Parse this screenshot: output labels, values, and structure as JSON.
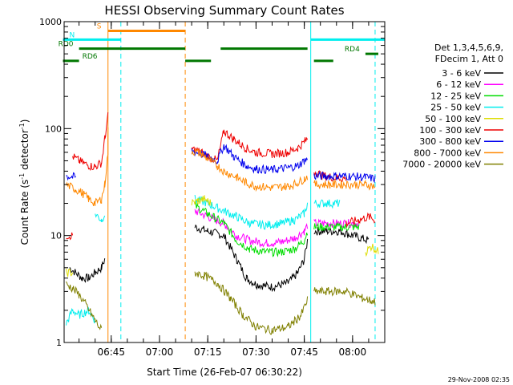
{
  "chart_data": {
    "type": "line",
    "title": "HESSI Observing Summary Count Rates",
    "xlabel": "Start Time (26-Feb-07 06:30:22)",
    "ylabel_main": "Count Rate (s",
    "ylabel_sup1": "-1",
    "ylabel_mid": " detector",
    "ylabel_sup2": "-1",
    "ylabel_end": ")",
    "y_scale": "log",
    "ylim": [
      1,
      1000
    ],
    "xlim": [
      "06:30:22",
      "08:10:00"
    ],
    "xticks": [
      {
        "t": "06:45",
        "label": "06:45"
      },
      {
        "t": "07:00",
        "label": "07:00"
      },
      {
        "t": "07:15",
        "label": "07:15"
      },
      {
        "t": "07:30",
        "label": "07:30"
      },
      {
        "t": "07:45",
        "label": "07:45"
      },
      {
        "t": "08:00",
        "label": "08:00"
      }
    ],
    "yticks": [
      {
        "v": 1,
        "label": "1"
      },
      {
        "v": 10,
        "label": "10"
      },
      {
        "v": 100,
        "label": "100"
      },
      {
        "v": 1000,
        "label": "1000"
      }
    ],
    "legend_header": [
      "Det 1,3,4,5,6,9,",
      "FDecim 1, Att 0"
    ],
    "series": [
      {
        "name": "3 - 6 keV",
        "color": "#000000",
        "segments": [
          [
            [
              "06:32",
              5
            ],
            [
              "06:36",
              4
            ],
            [
              "06:38",
              4
            ],
            [
              "06:40",
              4.5
            ],
            [
              "06:42",
              5
            ],
            [
              "06:43",
              6
            ]
          ],
          [
            [
              "07:11",
              12
            ],
            [
              "07:15",
              11
            ],
            [
              "07:20",
              10
            ],
            [
              "07:24",
              6
            ],
            [
              "07:27",
              4
            ],
            [
              "07:30",
              3.5
            ],
            [
              "07:35",
              3.3
            ],
            [
              "07:40",
              3.6
            ],
            [
              "07:43",
              4.5
            ],
            [
              "07:45",
              6
            ],
            [
              "07:46",
              9
            ]
          ],
          [
            [
              "07:48",
              11
            ],
            [
              "07:52",
              11
            ],
            [
              "07:56",
              11
            ],
            [
              "08:00",
              10
            ],
            [
              "08:05",
              9
            ]
          ]
        ]
      },
      {
        "name": "6 - 12 keV",
        "color": "#ff00ff",
        "segments": [
          [
            [
              "07:11",
              17
            ],
            [
              "07:15",
              15
            ],
            [
              "07:20",
              13
            ],
            [
              "07:24",
              10
            ],
            [
              "07:28",
              9
            ],
            [
              "07:33",
              8.5
            ],
            [
              "07:38",
              8.7
            ],
            [
              "07:42",
              9.5
            ],
            [
              "07:45",
              11
            ],
            [
              "07:46",
              12.5
            ]
          ],
          [
            [
              "07:48",
              13
            ],
            [
              "07:53",
              13
            ],
            [
              "07:58",
              13
            ],
            [
              "08:02",
              13
            ]
          ]
        ]
      },
      {
        "name": "12 - 25 keV",
        "color": "#00dd00",
        "segments": [
          [
            [
              "07:11",
              19
            ],
            [
              "07:15",
              16
            ],
            [
              "07:20",
              13
            ],
            [
              "07:24",
              9
            ],
            [
              "07:28",
              7.5
            ],
            [
              "07:33",
              7
            ],
            [
              "07:38",
              7
            ],
            [
              "07:42",
              7.5
            ],
            [
              "07:45",
              9
            ],
            [
              "07:46",
              11
            ]
          ],
          [
            [
              "07:48",
              12
            ],
            [
              "07:53",
              12
            ],
            [
              "07:58",
              12
            ],
            [
              "08:02",
              12
            ]
          ]
        ]
      },
      {
        "name": "25 - 50 keV",
        "color": "#00eeee",
        "segments": [
          [
            [
              "06:31",
              1.5
            ],
            [
              "06:33",
              2
            ],
            [
              "06:35",
              1.8
            ],
            [
              "06:38",
              2
            ],
            [
              "06:40",
              1.6
            ]
          ],
          [
            [
              "06:40",
              16
            ],
            [
              "06:42",
              14
            ],
            [
              "06:43",
              16
            ]
          ],
          [
            [
              "07:11",
              22
            ],
            [
              "07:15",
              20
            ],
            [
              "07:20",
              17
            ],
            [
              "07:24",
              15
            ],
            [
              "07:28",
              13
            ],
            [
              "07:33",
              12.5
            ],
            [
              "07:38",
              13
            ],
            [
              "07:42",
              14
            ],
            [
              "07:45",
              16
            ],
            [
              "07:46",
              20
            ]
          ],
          [
            [
              "07:48",
              20
            ],
            [
              "07:52",
              20
            ],
            [
              "07:56",
              20
            ]
          ]
        ]
      },
      {
        "name": "50 - 100 keV",
        "color": "#dddd00",
        "segments": [
          [
            [
              "06:31",
              4.5
            ],
            [
              "06:33",
              4.5
            ]
          ],
          [
            [
              "07:10",
              20
            ],
            [
              "07:12",
              21
            ],
            [
              "07:14",
              22
            ],
            [
              "07:16",
              20
            ]
          ],
          [
            [
              "08:04",
              7
            ],
            [
              "08:06",
              8
            ],
            [
              "08:08",
              7
            ]
          ]
        ]
      },
      {
        "name": "100 - 300 keV",
        "color": "#ee0000",
        "segments": [
          [
            [
              "06:31",
              10
            ],
            [
              "06:33",
              10
            ]
          ],
          [
            [
              "06:33",
              55
            ],
            [
              "06:35",
              50
            ],
            [
              "06:38",
              45
            ],
            [
              "06:40",
              44
            ],
            [
              "06:42",
              48
            ],
            [
              "06:43",
              80
            ],
            [
              "06:44",
              130
            ]
          ],
          [
            [
              "07:10",
              65
            ],
            [
              "07:13",
              60
            ],
            [
              "07:15",
              55
            ],
            [
              "07:18",
              50
            ],
            [
              "07:20",
              95
            ],
            [
              "07:23",
              80
            ],
            [
              "07:27",
              65
            ],
            [
              "07:30",
              60
            ],
            [
              "07:35",
              58
            ],
            [
              "07:40",
              60
            ],
            [
              "07:43",
              66
            ],
            [
              "07:45",
              75
            ],
            [
              "07:46",
              80
            ]
          ],
          [
            [
              "07:48",
              40
            ],
            [
              "07:51",
              36
            ],
            [
              "07:54",
              35
            ],
            [
              "07:58",
              34
            ]
          ],
          [
            [
              "07:58",
              13
            ],
            [
              "08:02",
              14
            ],
            [
              "08:05",
              15
            ],
            [
              "08:07",
              14
            ]
          ]
        ]
      },
      {
        "name": "300 - 800 keV",
        "color": "#0000ee",
        "segments": [
          [
            [
              "06:31",
              36
            ],
            [
              "06:34",
              35
            ]
          ],
          [
            [
              "07:10",
              62
            ],
            [
              "07:13",
              58
            ],
            [
              "07:15",
              55
            ],
            [
              "07:18",
              50
            ],
            [
              "07:20",
              70
            ],
            [
              "07:23",
              55
            ],
            [
              "07:27",
              45
            ],
            [
              "07:30",
              42
            ],
            [
              "07:35",
              41
            ],
            [
              "07:40",
              43
            ],
            [
              "07:43",
              45
            ],
            [
              "07:45",
              50
            ],
            [
              "07:46",
              52
            ]
          ],
          [
            [
              "07:48",
              36
            ],
            [
              "07:53",
              36
            ],
            [
              "07:58",
              36
            ],
            [
              "08:04",
              35
            ],
            [
              "08:07",
              34
            ]
          ]
        ]
      },
      {
        "name": "800 - 7000 keV",
        "color": "#ff8800",
        "segments": [
          [
            [
              "06:31",
              30
            ],
            [
              "06:34",
              27
            ],
            [
              "06:36",
              25
            ],
            [
              "06:38",
              22
            ],
            [
              "06:40",
              20
            ],
            [
              "06:42",
              22
            ],
            [
              "06:43",
              30
            ],
            [
              "06:44",
              60
            ],
            [
              "06:44",
              100
            ]
          ],
          [
            [
              "07:10",
              62
            ],
            [
              "07:13",
              58
            ],
            [
              "07:15",
              52
            ],
            [
              "07:18",
              45
            ],
            [
              "07:20",
              40
            ],
            [
              "07:24",
              35
            ],
            [
              "07:27",
              31
            ],
            [
              "07:30",
              29
            ],
            [
              "07:35",
              28
            ],
            [
              "07:40",
              29
            ],
            [
              "07:43",
              31
            ],
            [
              "07:45",
              34
            ],
            [
              "07:46",
              36
            ]
          ],
          [
            [
              "07:48",
              30
            ],
            [
              "07:53",
              30
            ],
            [
              "07:58",
              30
            ],
            [
              "08:04",
              30
            ],
            [
              "08:07",
              29
            ]
          ]
        ]
      },
      {
        "name": "7000 - 20000 keV",
        "color": "#808000",
        "segments": [
          [
            [
              "06:31",
              3.5
            ],
            [
              "06:33",
              3.2
            ],
            [
              "06:35",
              2.8
            ],
            [
              "06:37",
              2.3
            ],
            [
              "06:40",
              1.6
            ],
            [
              "06:42",
              1.3
            ]
          ],
          [
            [
              "07:11",
              4.5
            ],
            [
              "07:14",
              4.2
            ],
            [
              "07:18",
              3.6
            ],
            [
              "07:22",
              2.6
            ],
            [
              "07:26",
              1.8
            ],
            [
              "07:30",
              1.4
            ],
            [
              "07:35",
              1.3
            ],
            [
              "07:40",
              1.4
            ],
            [
              "07:44",
              1.8
            ],
            [
              "07:46",
              2.5
            ]
          ],
          [
            [
              "07:48",
              3
            ],
            [
              "07:53",
              3
            ],
            [
              "07:58",
              3
            ],
            [
              "08:03",
              2.6
            ],
            [
              "08:07",
              2.4
            ]
          ]
        ]
      }
    ],
    "flags": [
      {
        "label": "S",
        "color": "#ff8800",
        "start": "06:44",
        "end": "07:08",
        "level": 820
      },
      {
        "label": "N",
        "color": "#00eeee",
        "start": "06:30",
        "end": "06:48",
        "level": 680
      },
      {
        "label": "N",
        "color": "#00eeee",
        "start": "07:47",
        "end": "08:10",
        "level": 680
      },
      {
        "label": "RD0",
        "color": "#007700",
        "start": "06:35",
        "end": "07:08",
        "level": 560,
        "show_label": "left"
      },
      {
        "label": "RD0",
        "color": "#007700",
        "start": "07:19",
        "end": "07:46",
        "level": 560
      },
      {
        "label": "RD6",
        "color": "#007700",
        "start": "06:30",
        "end": "06:35",
        "level": 430,
        "show_label": "right"
      },
      {
        "label": "RD6",
        "color": "#007700",
        "start": "07:08",
        "end": "07:16",
        "level": 430
      },
      {
        "label": "RD4",
        "color": "#007700",
        "start": "07:48",
        "end": "07:54",
        "level": 430
      },
      {
        "label": "RD4",
        "color": "#007700",
        "start": "08:04",
        "end": "08:08",
        "level": 500,
        "show_label": "left"
      }
    ],
    "vlines": [
      {
        "t": "06:44",
        "color": "#ff8800",
        "style": "solid"
      },
      {
        "t": "07:08",
        "color": "#ff8800",
        "style": "dash"
      },
      {
        "t": "06:48",
        "color": "#00eeee",
        "style": "dash"
      },
      {
        "t": "07:47",
        "color": "#00eeee",
        "style": "solid"
      },
      {
        "t": "08:07",
        "color": "#00eeee",
        "style": "dash"
      }
    ],
    "timestamp": "29-Nov-2008 02:35",
    "grid": false,
    "legend_position": "right"
  }
}
